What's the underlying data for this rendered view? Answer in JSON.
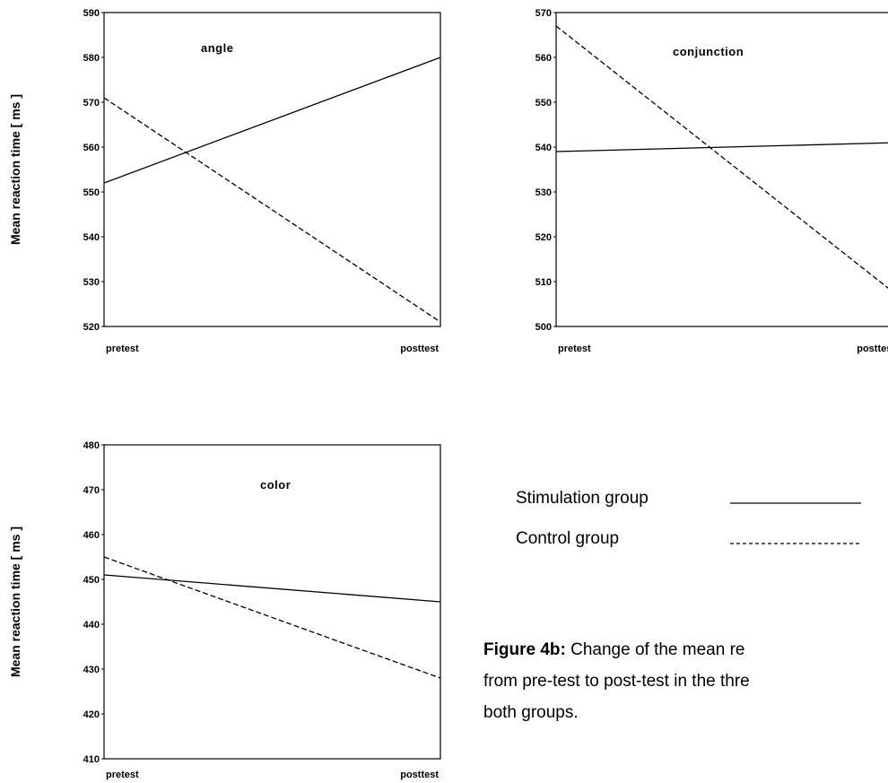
{
  "chart_data": [
    {
      "type": "line",
      "title": "angle",
      "ylabel": "Mean reaction time [ ms ]",
      "categories": [
        "pretest",
        "posttest"
      ],
      "ylim": [
        520,
        590
      ],
      "yticks": [
        520,
        530,
        540,
        550,
        560,
        570,
        580,
        590
      ],
      "series": [
        {
          "name": "Stimulation group",
          "style": "solid",
          "values": [
            552,
            580
          ]
        },
        {
          "name": "Control group",
          "style": "dashed",
          "values": [
            571,
            521
          ]
        }
      ]
    },
    {
      "type": "line",
      "title": "conjunction",
      "ylabel": "",
      "categories": [
        "pretest",
        "posttest"
      ],
      "ylim": [
        500,
        570
      ],
      "yticks": [
        500,
        510,
        520,
        530,
        540,
        550,
        560,
        570
      ],
      "series": [
        {
          "name": "Stimulation group",
          "style": "solid",
          "values": [
            539,
            541
          ]
        },
        {
          "name": "Control group",
          "style": "dashed",
          "values": [
            567,
            507
          ]
        }
      ]
    },
    {
      "type": "line",
      "title": "color",
      "ylabel": "Mean reaction time [ ms ]",
      "categories": [
        "pretest",
        "posttest"
      ],
      "ylim": [
        410,
        480
      ],
      "yticks": [
        410,
        420,
        430,
        440,
        450,
        460,
        470,
        480
      ],
      "series": [
        {
          "name": "Stimulation group",
          "style": "solid",
          "values": [
            451,
            445
          ]
        },
        {
          "name": "Control group",
          "style": "dashed",
          "values": [
            455,
            428
          ]
        }
      ]
    }
  ],
  "legend": {
    "stimulation_label": "Stimulation group",
    "control_label": "Control group",
    "stimulation_sample": "————————",
    "control_sample": "----------------"
  },
  "caption": {
    "bold": "Figure 4b:",
    "line1": " Change of the mean re",
    "line2": "from pre-test to post-test in the thre",
    "line3": "both groups."
  },
  "colors": {
    "line": "#000000",
    "background": "#ffffff"
  }
}
